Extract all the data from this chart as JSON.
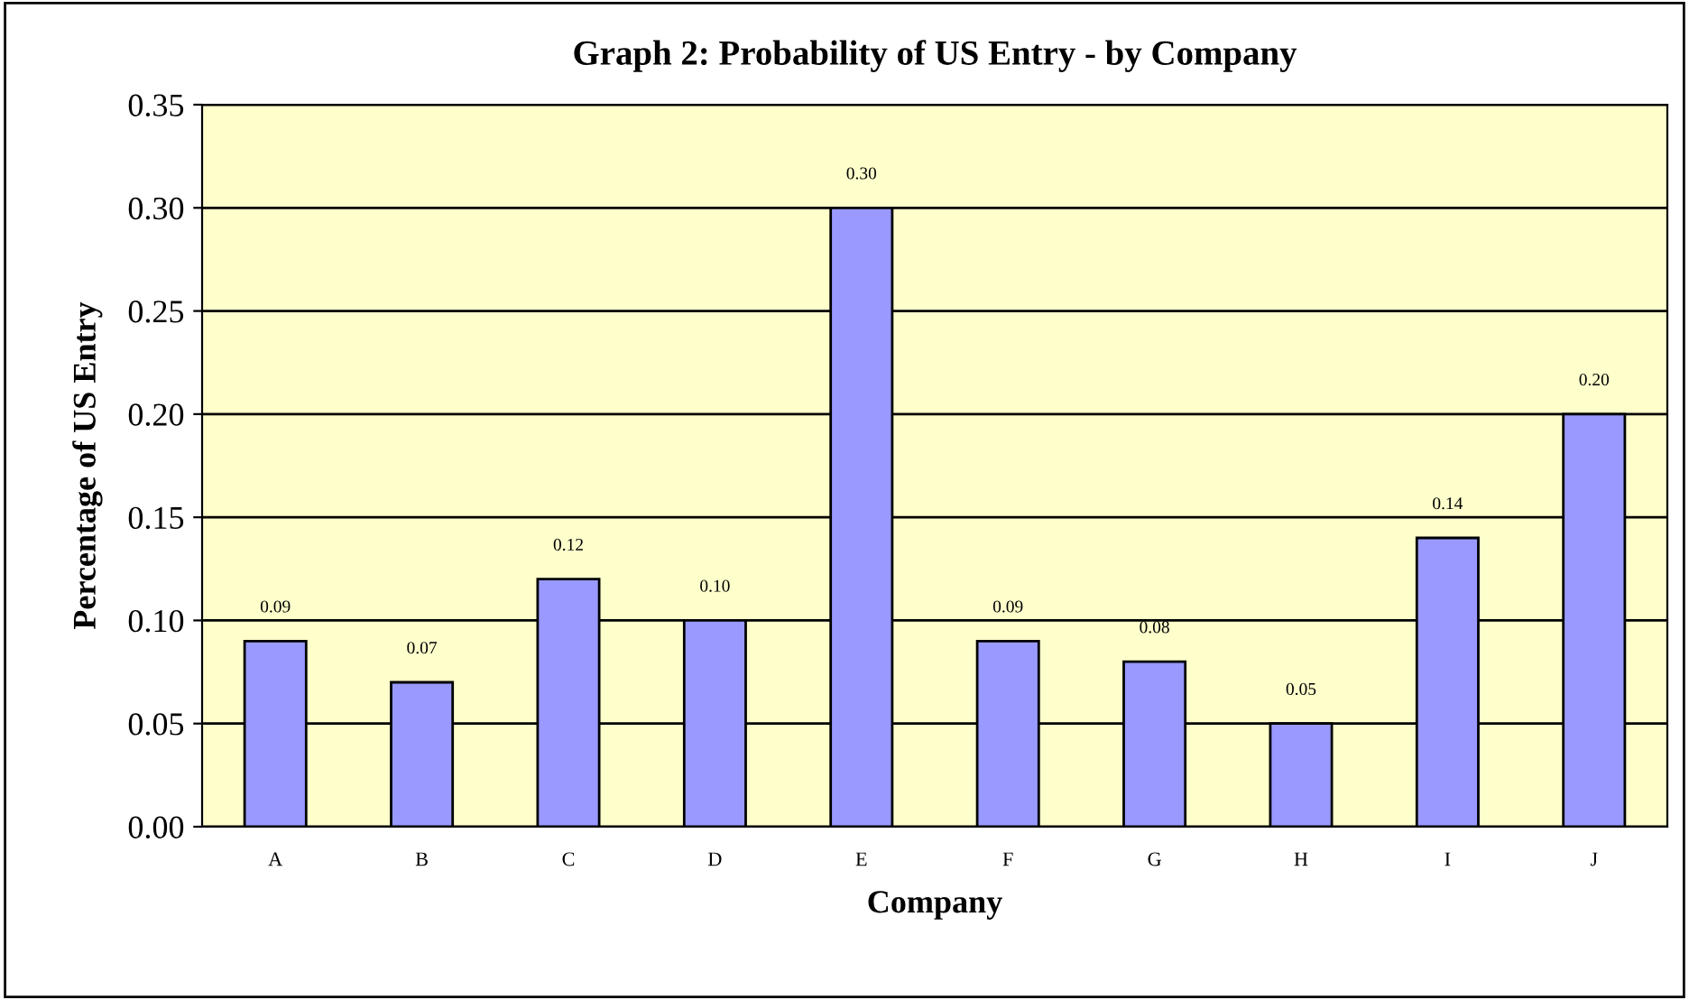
{
  "chart_data": {
    "type": "bar",
    "title": "Graph 2: Probability of US Entry - by Company",
    "xlabel": "Company",
    "ylabel": "Percentage of US Entry",
    "categories": [
      "A",
      "B",
      "C",
      "D",
      "E",
      "F",
      "G",
      "H",
      "I",
      "J"
    ],
    "values": [
      0.09,
      0.07,
      0.12,
      0.1,
      0.3,
      0.09,
      0.08,
      0.05,
      0.14,
      0.2
    ],
    "value_labels": [
      "0.09",
      "0.07",
      "0.12",
      "0.10",
      "0.30",
      "0.09",
      "0.08",
      "0.05",
      "0.14",
      "0.20"
    ],
    "color": "#9999ff",
    "ylim": [
      0,
      0.35
    ],
    "yticks": [
      {
        "value": 0,
        "label": "0.00"
      },
      {
        "value": 0.05,
        "label": "0.05"
      },
      {
        "value": 0.1,
        "label": "0.10"
      },
      {
        "value": 0.15,
        "label": "0.15"
      },
      {
        "value": 0.2,
        "label": "0.20"
      },
      {
        "value": 0.25,
        "label": "0.25"
      },
      {
        "value": 0.3,
        "label": "0.30"
      },
      {
        "value": 0.35,
        "label": "0.35"
      }
    ],
    "grid": "y"
  }
}
